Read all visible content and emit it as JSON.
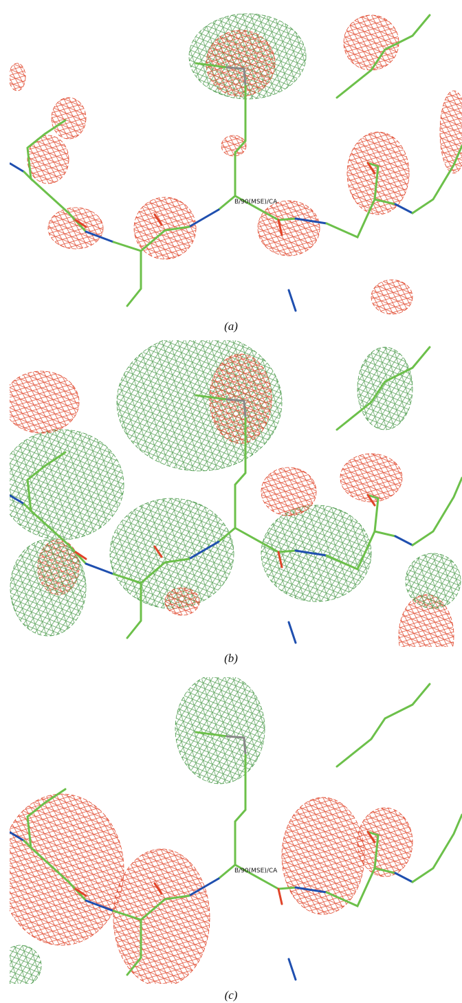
{
  "figure": {
    "panels": [
      {
        "atom_label": "B/90(MSE)/CA",
        "caption": "(a)"
      },
      {
        "caption": "(b)"
      },
      {
        "atom_label": "B/90(MSE)/CA",
        "caption": "(c)"
      }
    ]
  }
}
